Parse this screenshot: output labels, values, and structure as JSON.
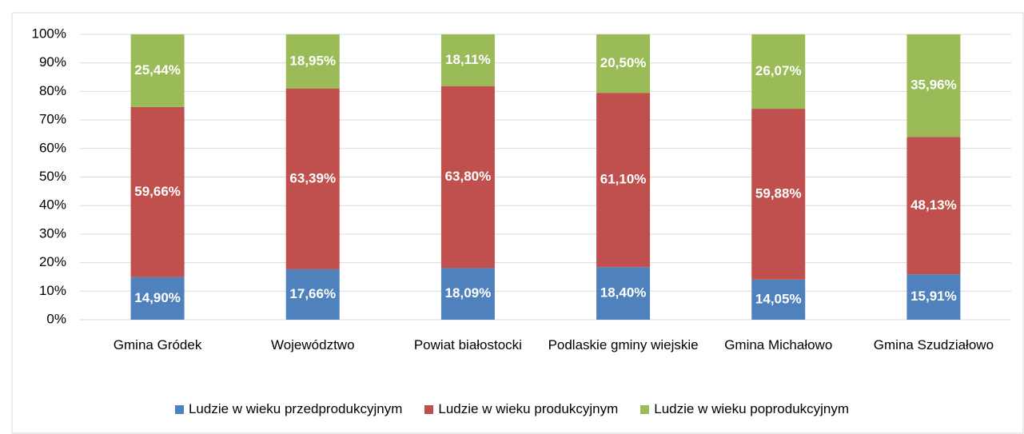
{
  "chart_data": {
    "type": "stacked_bar",
    "categories": [
      "Gmina Gródek",
      "Województwo",
      "Powiat białostocki",
      "Podlaskie gminy wiejskie",
      "Gmina Michałowo",
      "Gmina Szudziałowo"
    ],
    "series": [
      {
        "name": "Ludzie w wieku przedprodukcyjnym",
        "color": "#4f81bd",
        "values": [
          14.9,
          17.66,
          18.09,
          18.4,
          14.05,
          15.91
        ],
        "value_labels": [
          "14,90%",
          "17,66%",
          "18,09%",
          "18,40%",
          "14,05%",
          "15,91%"
        ]
      },
      {
        "name": "Ludzie w wieku produkcyjnym",
        "color": "#c0504d",
        "values": [
          59.66,
          63.39,
          63.8,
          61.1,
          59.88,
          48.13
        ],
        "value_labels": [
          "59,66%",
          "63,39%",
          "63,80%",
          "61,10%",
          "59,88%",
          "48,13%"
        ]
      },
      {
        "name": "Ludzie w wieku poprodukcyjnym",
        "color": "#9bbb59",
        "values": [
          25.44,
          18.95,
          18.11,
          20.5,
          26.07,
          35.96
        ],
        "value_labels": [
          "25,44%",
          "18,95%",
          "18,11%",
          "20,50%",
          "26,07%",
          "35,96%"
        ]
      }
    ],
    "ylim": [
      0,
      100
    ],
    "yticks": [
      {
        "value": 0,
        "label": "0%"
      },
      {
        "value": 10,
        "label": "10%"
      },
      {
        "value": 20,
        "label": "20%"
      },
      {
        "value": 30,
        "label": "30%"
      },
      {
        "value": 40,
        "label": "40%"
      },
      {
        "value": 50,
        "label": "50%"
      },
      {
        "value": 60,
        "label": "60%"
      },
      {
        "value": 70,
        "label": "70%"
      },
      {
        "value": 80,
        "label": "80%"
      },
      {
        "value": 90,
        "label": "90%"
      },
      {
        "value": 100,
        "label": "100%"
      }
    ],
    "grid": true,
    "legend": "bottom"
  }
}
